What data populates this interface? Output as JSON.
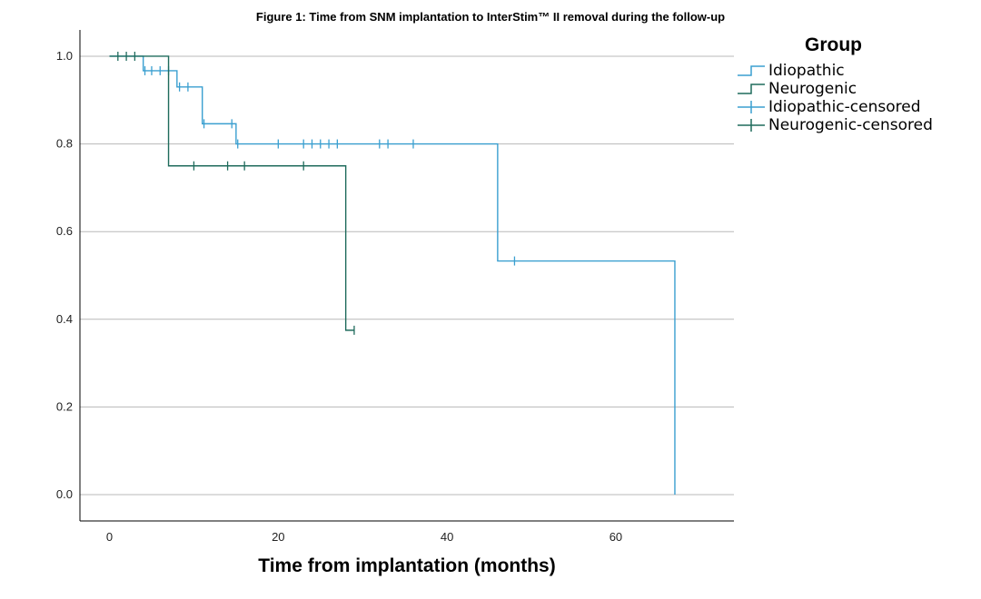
{
  "chart_data": {
    "type": "line",
    "title": "Figure 1: Time from SNM implantation to InterStim™ II removal during the follow-up",
    "xlabel": "Time from implantation (months)",
    "ylabel": "",
    "xlim": [
      -3.5,
      74
    ],
    "ylim": [
      -0.06,
      1.06
    ],
    "xticks": [
      0,
      20,
      40,
      60
    ],
    "yticks": [
      0.0,
      0.2,
      0.4,
      0.6,
      0.8,
      1.0
    ],
    "xtick_labels": [
      "0",
      "20",
      "40",
      "60"
    ],
    "ytick_labels": [
      "0.0",
      "0.2",
      "0.4",
      "0.6",
      "0.8",
      "1.0"
    ],
    "grid": "horizontal",
    "legend": {
      "title": "Group",
      "placement": "right",
      "entries": [
        {
          "label": "Idiopathic",
          "kind": "line",
          "color": "#3a9fd0"
        },
        {
          "label": "Neurogenic",
          "kind": "line",
          "color": "#1f6b5c"
        },
        {
          "label": "Idiopathic-censored",
          "kind": "censor",
          "color": "#3a9fd0"
        },
        {
          "label": "Neurogenic-censored",
          "kind": "censor",
          "color": "#1f6b5c"
        }
      ]
    },
    "series": [
      {
        "name": "Idiopathic",
        "color": "#3a9fd0",
        "steps": [
          [
            0,
            1.0
          ],
          [
            4,
            0.967
          ],
          [
            8,
            0.93
          ],
          [
            11,
            0.846
          ],
          [
            15,
            0.8
          ],
          [
            46,
            0.533
          ],
          [
            67,
            0.0
          ]
        ],
        "censored": [
          [
            4.2,
            0.967
          ],
          [
            5,
            0.967
          ],
          [
            6,
            0.967
          ],
          [
            7,
            0.967
          ],
          [
            8.3,
            0.93
          ],
          [
            9.3,
            0.93
          ],
          [
            11.2,
            0.846
          ],
          [
            14.5,
            0.846
          ],
          [
            15.2,
            0.8
          ],
          [
            20,
            0.8
          ],
          [
            23,
            0.8
          ],
          [
            24,
            0.8
          ],
          [
            25,
            0.8
          ],
          [
            26,
            0.8
          ],
          [
            27,
            0.8
          ],
          [
            32,
            0.8
          ],
          [
            33,
            0.8
          ],
          [
            36,
            0.8
          ],
          [
            48,
            0.533
          ]
        ]
      },
      {
        "name": "Neurogenic",
        "color": "#1f6b5c",
        "steps": [
          [
            0,
            1.0
          ],
          [
            7,
            0.75
          ],
          [
            28,
            0.375
          ]
        ],
        "censored": [
          [
            1,
            1.0
          ],
          [
            2,
            1.0
          ],
          [
            3,
            1.0
          ],
          [
            10,
            0.75
          ],
          [
            14,
            0.75
          ],
          [
            16,
            0.75
          ],
          [
            23,
            0.75
          ],
          [
            29,
            0.375
          ]
        ],
        "end_x": 29
      }
    ],
    "idiopathic_end_x": 67
  }
}
